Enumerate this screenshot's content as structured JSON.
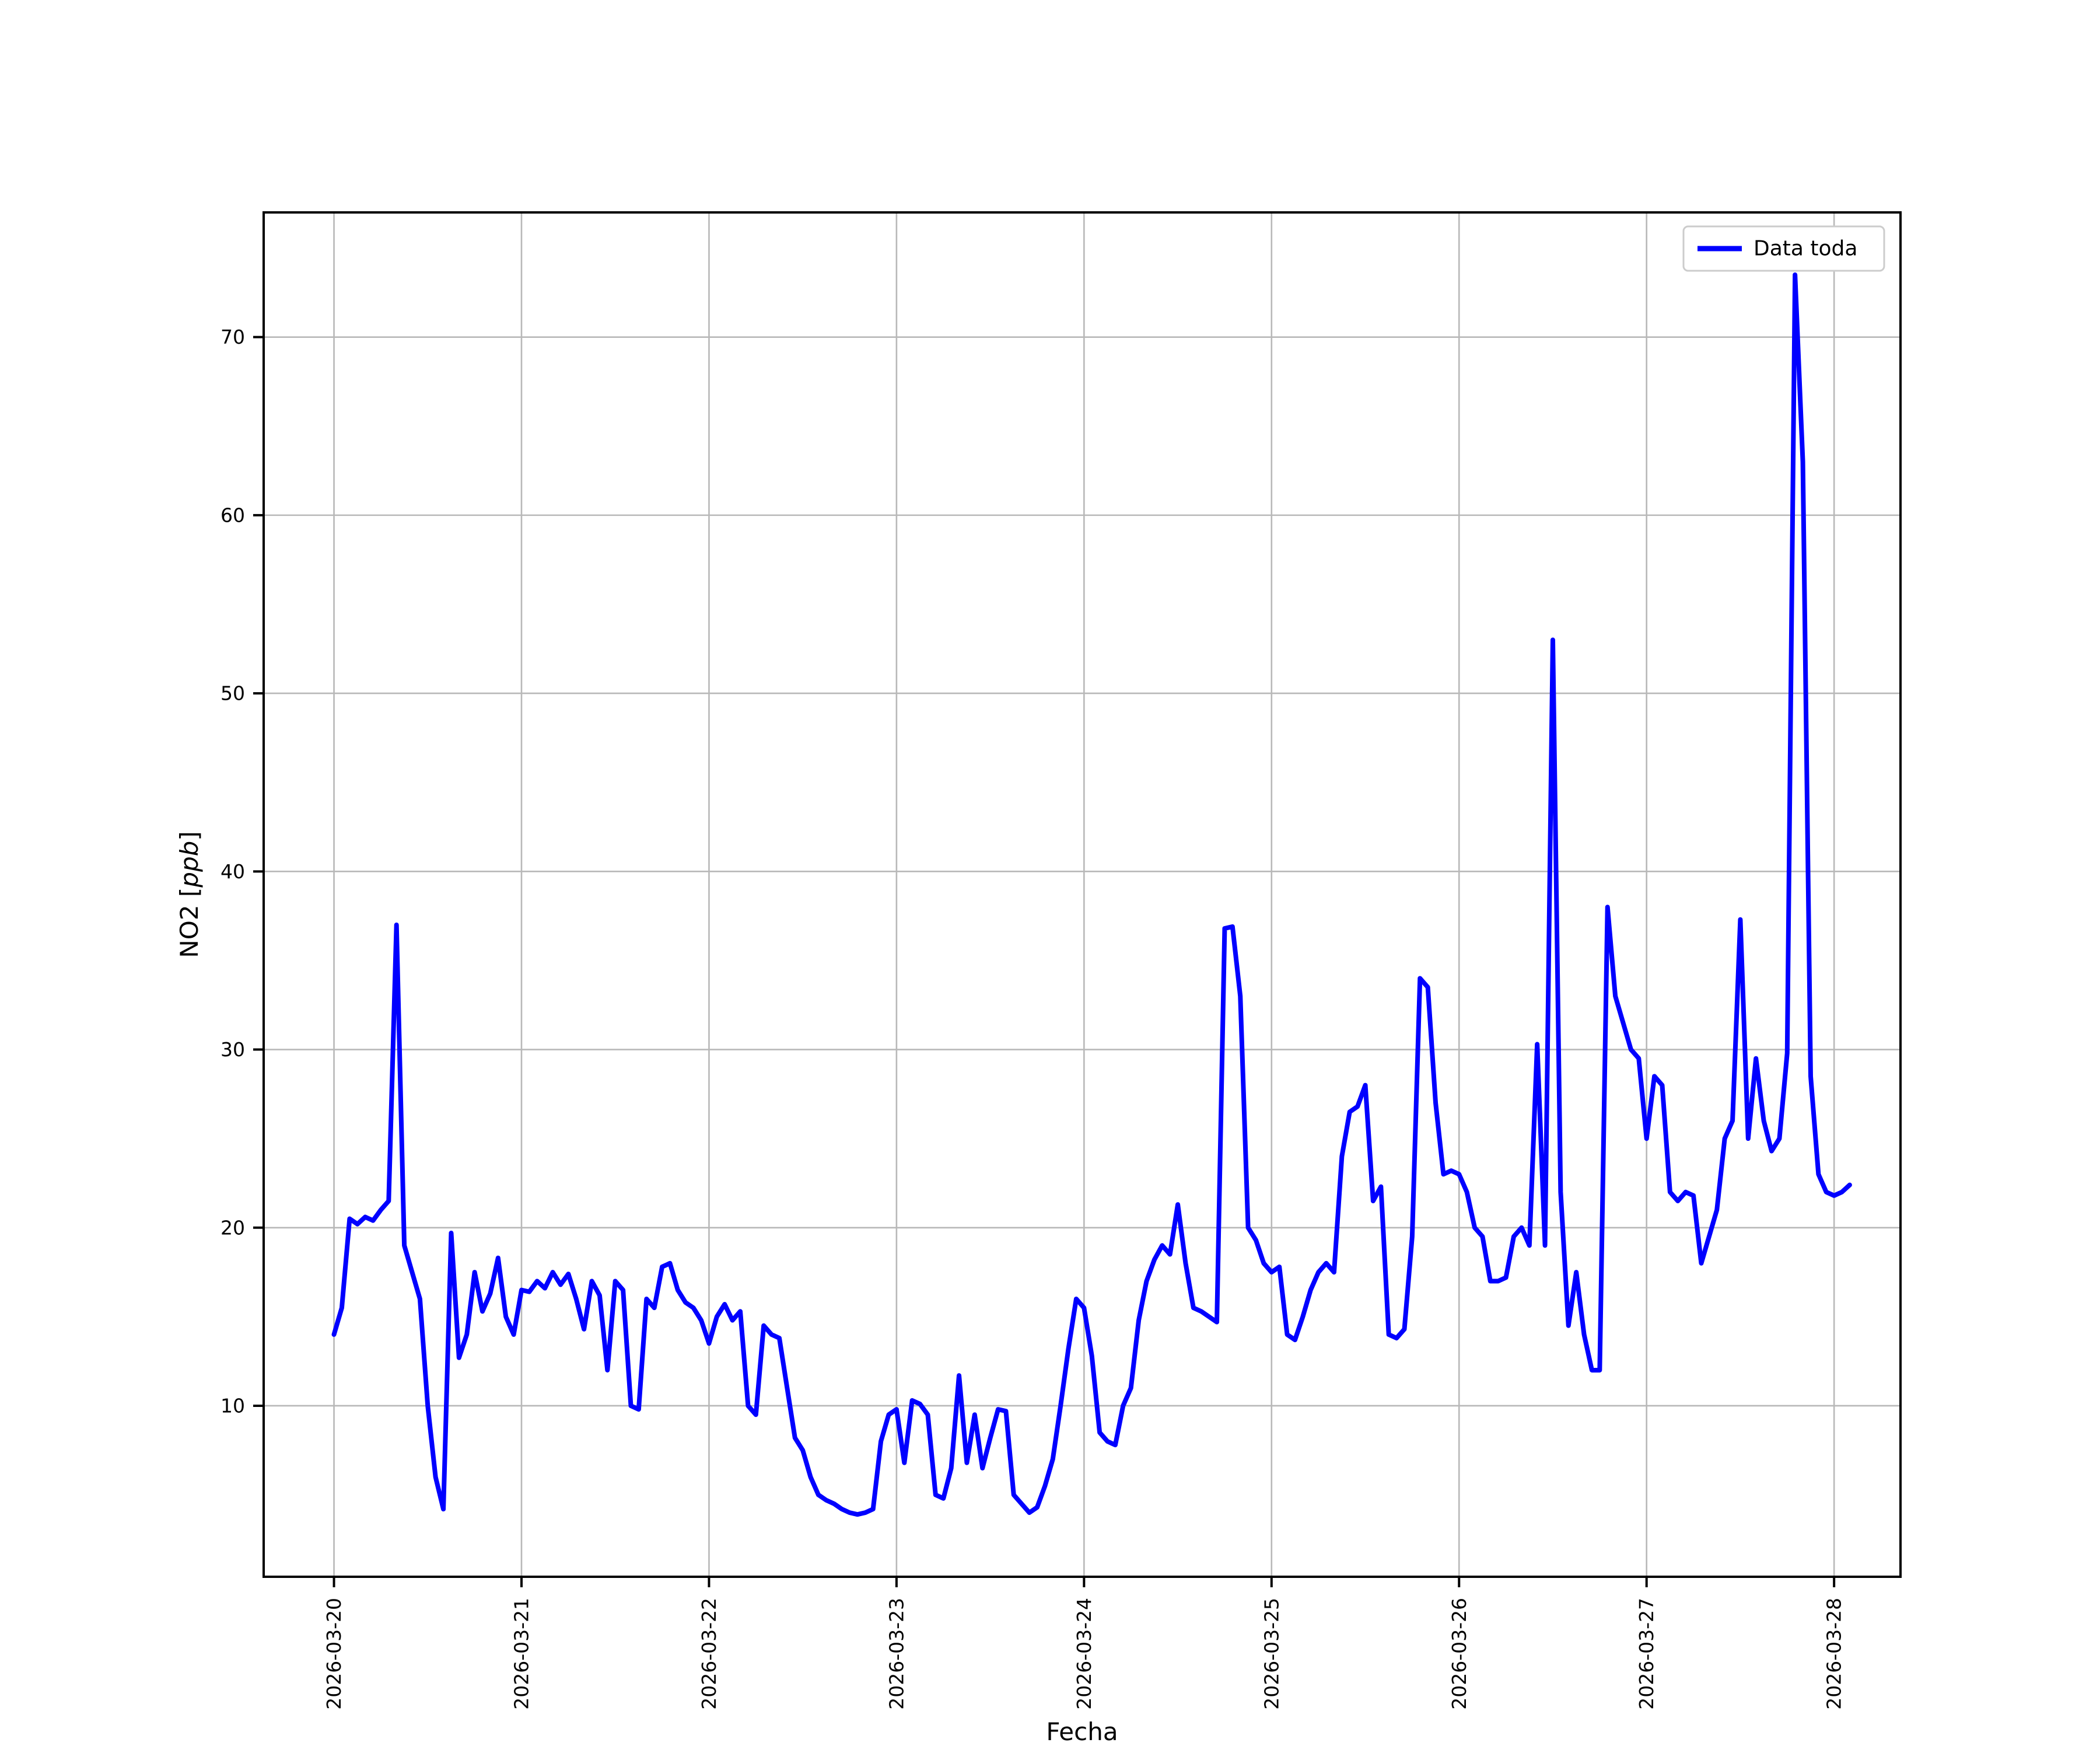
{
  "figure": {
    "background": "#ffffff",
    "plot_background": "#ffffff",
    "spine_color": "#000000",
    "grid_color": "#b8b8b8",
    "tick_color": "#000000"
  },
  "chart_data": {
    "type": "line",
    "title": "",
    "xlabel": "Fecha",
    "ylabel": "NO2 [ppb]",
    "ylabel_parts": {
      "prefix": "NO2 [",
      "italic": "ppb",
      "suffix": "]"
    },
    "grid": true,
    "legend_position": "upper right",
    "legend_label": "Data toda",
    "line_color": "#0000ff",
    "x_ticklabels": [
      "2026-03-20",
      "2026-03-21",
      "2026-03-22",
      "2026-03-23",
      "2026-03-24",
      "2026-03-25",
      "2026-03-26",
      "2026-03-27",
      "2026-03-28"
    ],
    "x_tick_hours": [
      0,
      24,
      48,
      72,
      96,
      120,
      144,
      168,
      192
    ],
    "y_ticks": [
      10,
      20,
      30,
      40,
      50,
      60,
      70
    ],
    "xlim_hours": [
      -9,
      200.5
    ],
    "ylim": [
      0.4,
      77
    ],
    "series": [
      {
        "name": "Data toda",
        "color": "#0000ff",
        "x_start": "2026-03-20 00:00",
        "x_step_hours": 1,
        "values": [
          14,
          15.5,
          20.5,
          20.2,
          20.6,
          20.4,
          21,
          21.5,
          37,
          19,
          17.5,
          16,
          10,
          6,
          4.2,
          19.7,
          12.7,
          14,
          17.5,
          15.3,
          16.3,
          18.3,
          15,
          14,
          16.5,
          16.4,
          17,
          16.6,
          17.5,
          16.8,
          17.4,
          16,
          14.3,
          17,
          16.2,
          12,
          17,
          16.5,
          10,
          9.8,
          16,
          15.5,
          17.8,
          18,
          16.5,
          15.8,
          15.5,
          14.8,
          13.5,
          15,
          15.7,
          14.8,
          15.3,
          10,
          9.5,
          14.5,
          14,
          13.8,
          11,
          8.2,
          7.5,
          6,
          5,
          4.7,
          4.5,
          4.2,
          4,
          3.9,
          4,
          4.2,
          8,
          9.5,
          9.8,
          6.8,
          10.3,
          10.1,
          9.5,
          5,
          4.8,
          6.5,
          11.7,
          6.8,
          9.5,
          6.5,
          8.2,
          9.8,
          9.7,
          5,
          4.5,
          4,
          4.3,
          5.5,
          7,
          10,
          13.2,
          16,
          15.5,
          12.8,
          8.5,
          8,
          7.8,
          10,
          11,
          14.8,
          17,
          18.2,
          19,
          18.5,
          21.3,
          18,
          15.5,
          15.3,
          15,
          14.7,
          36.8,
          36.9,
          33,
          20,
          19.3,
          18,
          17.5,
          17.8,
          14,
          13.7,
          15,
          16.5,
          17.5,
          18,
          17.5,
          24,
          26.5,
          26.8,
          28,
          21.5,
          22.3,
          14,
          13.8,
          14.3,
          19.5,
          34,
          33.5,
          27,
          23,
          23.2,
          23,
          22,
          20,
          19.5,
          17,
          17,
          17.2,
          19.5,
          20,
          19,
          30.3,
          19,
          53,
          22,
          14.5,
          17.5,
          14,
          12,
          12,
          38,
          33,
          31.5,
          30,
          29.5,
          25,
          28.5,
          28,
          22,
          21.5,
          22,
          21.8,
          18,
          19.5,
          21,
          25,
          26,
          37.3,
          25,
          29.5,
          26,
          24.3,
          25,
          29.8,
          73.5,
          63,
          28.5,
          23,
          22,
          21.8,
          22,
          22.4
        ]
      }
    ]
  }
}
